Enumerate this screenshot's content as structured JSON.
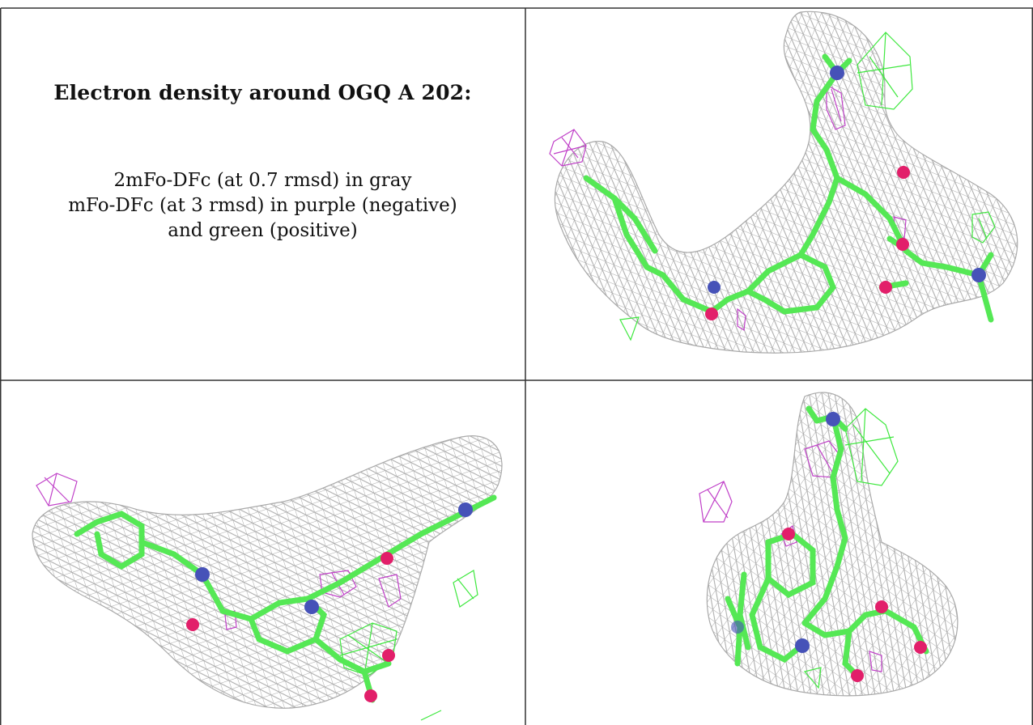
{
  "caption": {
    "title": "Electron density around OGQ A 202:",
    "line1": "2mFo-DFc (at 0.7 rmsd) in gray",
    "line2": "mFo-DFc (at 3 rmsd) in purple (negative)",
    "line3": "and green (positive)"
  },
  "colors": {
    "map_2fofc": "#a9a9a9",
    "map_negative": "#c040c8",
    "map_positive": "#3fe83f",
    "carbon": "#55e855",
    "nitrogen": "#4652b8",
    "oxygen": "#e21f6a",
    "table_border": "#333333"
  },
  "icons": {
    "gray_mesh": "mesh-2fofc",
    "purple_mesh": "mesh-negative",
    "green_mesh": "mesh-positive"
  }
}
